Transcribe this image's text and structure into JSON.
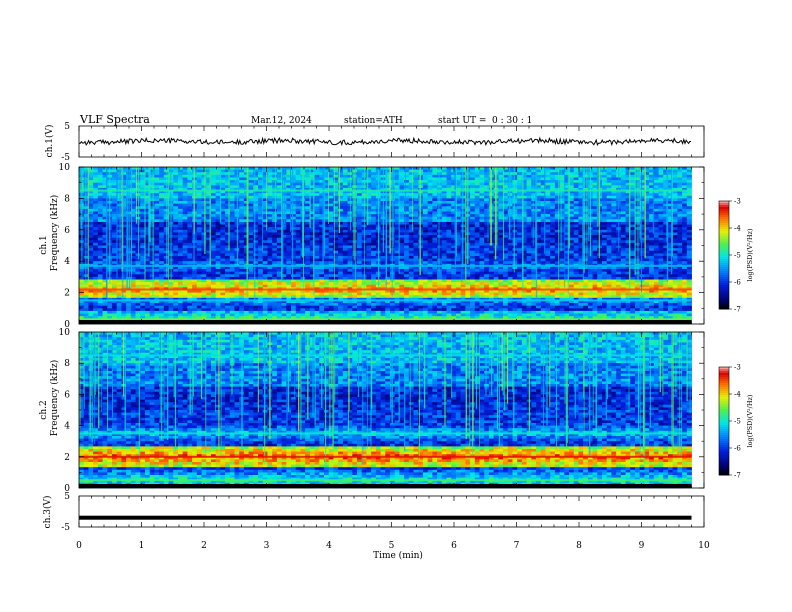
{
  "header": {
    "title": "VLF Spectra",
    "date": "Mar.12, 2024",
    "station": "station=ATH",
    "start": "start UT =",
    "start_time": "0 : 30 : 1"
  },
  "chart_data": [
    {
      "type": "line",
      "name": "ch1-waveform",
      "ylabel": "ch.1(V)",
      "ylim": [
        -5,
        5
      ],
      "yticks": [
        "5",
        "-5"
      ],
      "xlim": [
        0,
        10
      ],
      "x_end": 9.8,
      "approx_level": 0,
      "trace_color": "#000000"
    },
    {
      "type": "heatmap",
      "name": "ch1-spectrogram",
      "ylabel_line1": "ch.1",
      "ylabel_line2": "Frequency (kHz)",
      "ylim": [
        0,
        10
      ],
      "yticks": [
        "0",
        "2",
        "4",
        "6",
        "8",
        "10"
      ],
      "xlim": [
        0,
        10
      ],
      "x_end": 9.8,
      "colorbar": {
        "label": "log(PSD)(V²/Hz)",
        "range": [
          -7,
          -3
        ],
        "ticks": [
          "-3",
          "-4",
          "-5",
          "-6",
          "-7"
        ]
      },
      "bands_khz_approx": [
        {
          "khz": 0.3,
          "level": -4.8
        },
        {
          "khz": 1.5,
          "level": -5.5
        },
        {
          "khz": 2.2,
          "level": -3.8
        },
        {
          "khz": 3.7,
          "level": -5.6
        },
        {
          "khz": 8.5,
          "level": -5.2
        }
      ]
    },
    {
      "type": "heatmap",
      "name": "ch2-spectrogram",
      "ylabel_line1": "ch.2",
      "ylabel_line2": "Frequency (kHz)",
      "ylim": [
        0,
        10
      ],
      "yticks": [
        "0",
        "2",
        "4",
        "6",
        "8",
        "10"
      ],
      "xlim": [
        0,
        10
      ],
      "x_end": 9.8,
      "colorbar": {
        "label": "log(PSD)(V²/Hz)",
        "range": [
          -7,
          -3
        ],
        "ticks": [
          "-3",
          "-4",
          "-5",
          "-6",
          "-7"
        ]
      },
      "bands_khz_approx": [
        {
          "khz": 0.5,
          "level": -5.0
        },
        {
          "khz": 2.0,
          "level": -3.6
        },
        {
          "khz": 3.5,
          "level": -5.3
        },
        {
          "khz": 8.5,
          "level": -5.4
        }
      ]
    },
    {
      "type": "line",
      "name": "ch3-waveform",
      "ylabel": "ch.3(V)",
      "ylim": [
        -5,
        5
      ],
      "yticks": [
        "5",
        "-5"
      ],
      "xlim": [
        0,
        10
      ],
      "x_end": 9.8,
      "approx_level": -2,
      "trace_color": "#000000"
    }
  ],
  "xaxis": {
    "label": "Time (min)",
    "ticks": [
      "0",
      "1",
      "2",
      "3",
      "4",
      "5",
      "6",
      "7",
      "8",
      "9",
      "10"
    ]
  }
}
